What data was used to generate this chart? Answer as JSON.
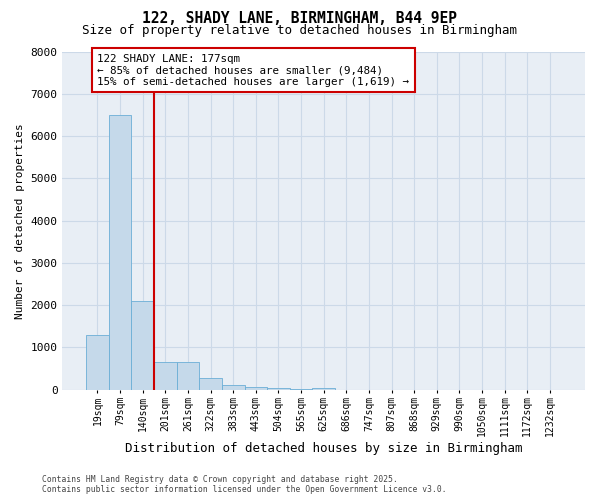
{
  "title1": "122, SHADY LANE, BIRMINGHAM, B44 9EP",
  "title2": "Size of property relative to detached houses in Birmingham",
  "xlabel": "Distribution of detached houses by size in Birmingham",
  "ylabel": "Number of detached properties",
  "categories": [
    "19sqm",
    "79sqm",
    "140sqm",
    "201sqm",
    "261sqm",
    "322sqm",
    "383sqm",
    "443sqm",
    "504sqm",
    "565sqm",
    "625sqm",
    "686sqm",
    "747sqm",
    "807sqm",
    "868sqm",
    "929sqm",
    "990sqm",
    "1050sqm",
    "1111sqm",
    "1172sqm",
    "1232sqm"
  ],
  "values": [
    1300,
    6500,
    2100,
    650,
    650,
    280,
    110,
    55,
    35,
    20,
    50,
    0,
    0,
    0,
    0,
    0,
    0,
    0,
    0,
    0,
    0
  ],
  "bar_color": "#c5d9ea",
  "bar_edge_color": "#6baed6",
  "vline_color": "#cc0000",
  "annotation_text": "122 SHADY LANE: 177sqm\n← 85% of detached houses are smaller (9,484)\n15% of semi-detached houses are larger (1,619) →",
  "annotation_box_edgecolor": "#cc0000",
  "ylim": [
    0,
    8000
  ],
  "yticks": [
    0,
    1000,
    2000,
    3000,
    4000,
    5000,
    6000,
    7000,
    8000
  ],
  "grid_color": "#ccd9e8",
  "background_color": "#e8eef5",
  "footnote": "Contains HM Land Registry data © Crown copyright and database right 2025.\nContains public sector information licensed under the Open Government Licence v3.0."
}
